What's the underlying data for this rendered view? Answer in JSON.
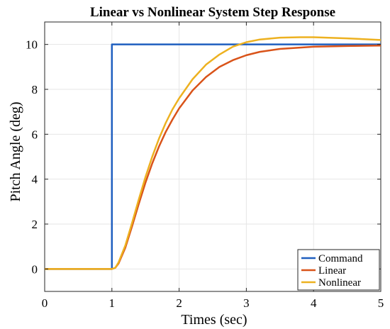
{
  "chart_data": {
    "type": "line",
    "title": "Linear vs Nonlinear System Step Response",
    "xlabel": "Times (sec)",
    "ylabel": "Pitch Angle (deg)",
    "xlim": [
      0,
      5
    ],
    "ylim": [
      -1,
      11
    ],
    "xticks": [
      0,
      1,
      2,
      3,
      4,
      5
    ],
    "yticks": [
      0,
      2,
      4,
      6,
      8,
      10
    ],
    "grid": true,
    "legend": "bottom-right",
    "series": [
      {
        "name": "Command",
        "color": "#1f5fbf",
        "x": [
          0,
          1.0,
          1.0,
          5
        ],
        "y": [
          0,
          0,
          10,
          10
        ]
      },
      {
        "name": "Linear",
        "color": "#d95319",
        "x": [
          0,
          1.0,
          1.05,
          1.1,
          1.2,
          1.3,
          1.4,
          1.5,
          1.6,
          1.7,
          1.8,
          1.9,
          2.0,
          2.2,
          2.4,
          2.6,
          2.8,
          3.0,
          3.2,
          3.5,
          4.0,
          4.5,
          5.0
        ],
        "y": [
          0,
          0,
          0.05,
          0.25,
          0.95,
          1.9,
          2.9,
          3.85,
          4.7,
          5.45,
          6.1,
          6.65,
          7.15,
          7.95,
          8.55,
          9.0,
          9.3,
          9.52,
          9.67,
          9.8,
          9.9,
          9.93,
          9.95
        ]
      },
      {
        "name": "Nonlinear",
        "color": "#edb120",
        "x": [
          0,
          1.0,
          1.05,
          1.1,
          1.2,
          1.3,
          1.4,
          1.5,
          1.6,
          1.7,
          1.8,
          1.9,
          2.0,
          2.2,
          2.4,
          2.6,
          2.8,
          3.0,
          3.2,
          3.5,
          3.8,
          4.0,
          4.5,
          5.0
        ],
        "y": [
          0,
          0,
          0.05,
          0.3,
          1.05,
          2.05,
          3.1,
          4.1,
          5.0,
          5.8,
          6.5,
          7.1,
          7.6,
          8.45,
          9.1,
          9.55,
          9.9,
          10.1,
          10.22,
          10.3,
          10.32,
          10.32,
          10.27,
          10.2
        ]
      }
    ]
  }
}
